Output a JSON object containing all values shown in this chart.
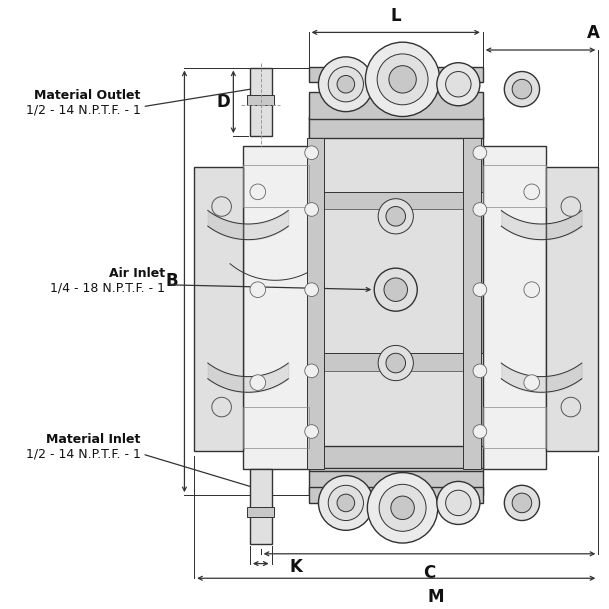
{
  "bg_color": "#ffffff",
  "line_color": "#333333",
  "dim_color": "#333333",
  "text_color": "#111111",
  "fill_light": "#f0f0f0",
  "fill_mid": "#e0e0e0",
  "fill_dark": "#c8c8c8",
  "fill_darker": "#b0b0b0",
  "labels": {
    "material_outlet_title": "Material Outlet",
    "material_outlet_spec": "1/2 - 14 N.P.T.F. - 1",
    "air_inlet_title": "Air Inlet",
    "air_inlet_spec": "1/4 - 18 N.P.T.F. - 1",
    "material_inlet_title": "Material Inlet",
    "material_inlet_spec": "1/2 - 14 N.P.T.F. - 1",
    "dim_L": "L",
    "dim_A": "A",
    "dim_B": "B",
    "dim_C": "C",
    "dim_M": "M",
    "dim_K": "K",
    "dim_D": "D"
  },
  "fontsize_label_title": 9,
  "fontsize_label_spec": 9,
  "fontsize_dim": 12,
  "fontfamily": "DejaVu Sans"
}
